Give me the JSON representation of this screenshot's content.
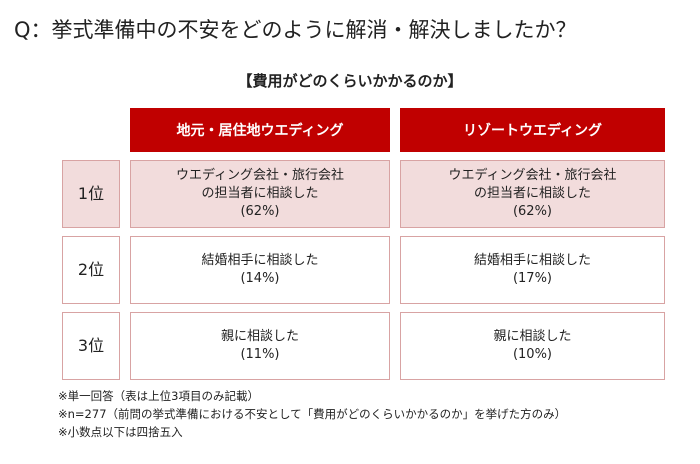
{
  "title": "Q：挙式準備中の不安をどのように解消・解決しましたか？",
  "subtitle": "【費用がどのくらいかかるのか】",
  "table": {
    "headers": [
      "地元・居住地ウエディング",
      "リゾートウエディング"
    ],
    "rows": [
      {
        "rank": "1位",
        "cells": [
          [
            "ウエディング会社・旅行会社",
            "の担当者に相談した",
            "(62%)"
          ],
          [
            "ウエディング会社・旅行会社",
            "の担当者に相談した",
            "(62%)"
          ]
        ]
      },
      {
        "rank": "2位",
        "cells": [
          [
            "結婚相手に相談した",
            "(14%)"
          ],
          [
            "結婚相手に相談した",
            "(17%)"
          ]
        ]
      },
      {
        "rank": "3位",
        "cells": [
          [
            "親に相談した",
            "(11%)"
          ],
          [
            "親に相談した",
            "(10%)"
          ]
        ]
      }
    ]
  },
  "notes": [
    "※単一回答（表は上位3項目のみ記載）",
    "※n=277（前問の挙式準備における不安として「費用がどのくらいかかるのか」を挙げた方のみ）",
    "※小数点以下は四捨五入"
  ]
}
